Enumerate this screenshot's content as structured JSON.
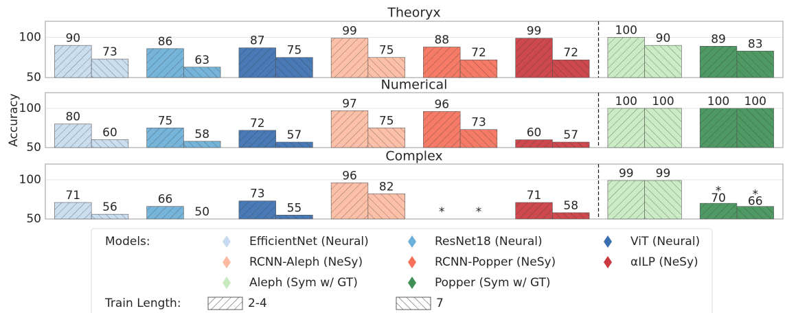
{
  "ylabel": "Accuracy",
  "legend": {
    "models_label": "Models:",
    "train_label": "Train Length:"
  },
  "chart_data": [
    {
      "type": "bar",
      "title": "Theoryx",
      "categories": [
        "EfficientNet (Neural)",
        "ResNet18 (Neural)",
        "ViT (Neural)",
        "RCNN-Aleph (NeSy)",
        "RCNN-Popper (NeSy)",
        "αILP (NeSy)",
        "Aleph (Sym w/ GT)",
        "Popper (Sym w/ GT)"
      ],
      "colors": [
        "#c6dbef",
        "#6baed6",
        "#3a6fb0",
        "#fcbba1",
        "#f5705a",
        "#c9393e",
        "#c7e9c0",
        "#3f9057"
      ],
      "series": [
        {
          "name": "2-4",
          "values": [
            90,
            86,
            87,
            99,
            88,
            99,
            100,
            89
          ]
        },
        {
          "name": "7",
          "values": [
            73,
            63,
            75,
            75,
            72,
            72,
            90,
            83
          ]
        }
      ],
      "ylim": [
        50,
        120
      ],
      "yticks": [
        50,
        100
      ],
      "grid": true
    },
    {
      "type": "bar",
      "title": "Numerical",
      "ylim": [
        50,
        120
      ],
      "yticks": [
        50,
        100
      ],
      "grid": true,
      "series": [
        {
          "name": "2-4",
          "values": [
            80,
            75,
            72,
            97,
            96,
            60,
            100,
            100
          ]
        },
        {
          "name": "7",
          "values": [
            60,
            58,
            57,
            75,
            73,
            57,
            100,
            100
          ]
        }
      ]
    },
    {
      "type": "bar",
      "title": "Complex",
      "ylim": [
        50,
        120
      ],
      "yticks": [
        50,
        100
      ],
      "grid": true,
      "series": [
        {
          "name": "2-4",
          "values": [
            71,
            66,
            73,
            96,
            null,
            71,
            99,
            70
          ],
          "value_labels": [
            "71",
            "66",
            "73",
            "96",
            "*",
            "71",
            "99",
            "*70"
          ]
        },
        {
          "name": "7",
          "values": [
            56,
            50,
            55,
            82,
            null,
            58,
            99,
            66
          ],
          "value_labels": [
            "56",
            "50",
            "55",
            "82",
            "*",
            "58",
            "99",
            "*66"
          ]
        }
      ]
    }
  ]
}
